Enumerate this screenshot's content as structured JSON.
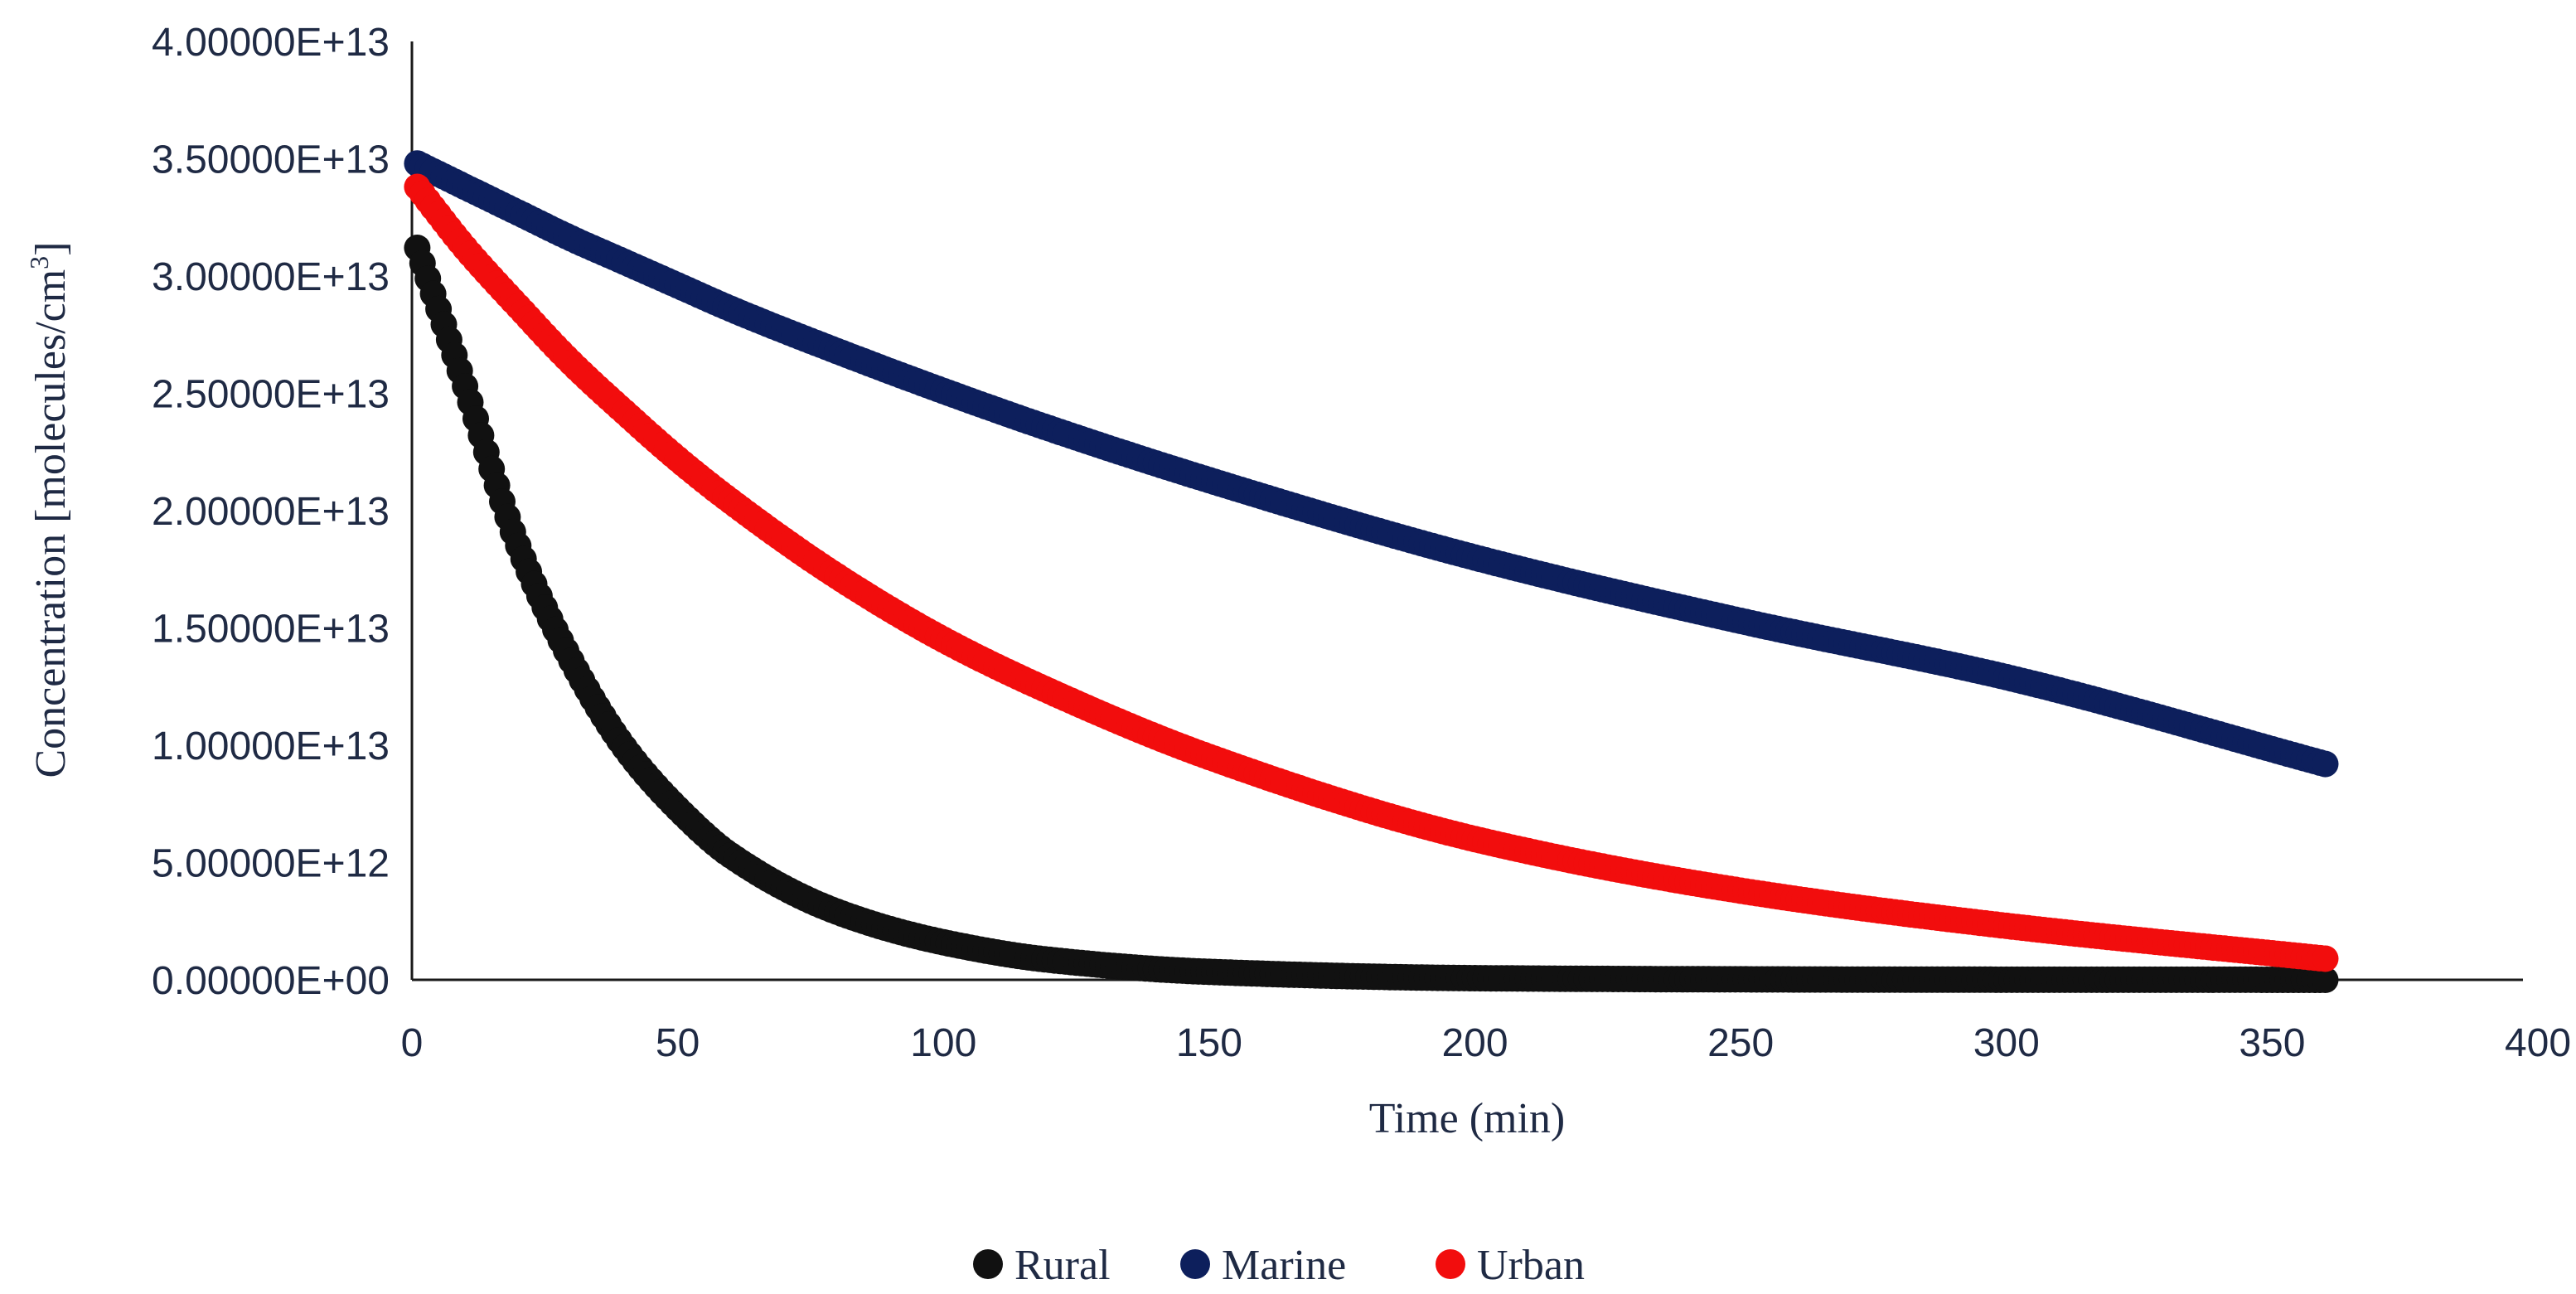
{
  "chart_data": {
    "type": "scatter",
    "title": "",
    "xlabel": "Time (min)",
    "ylabel": "Concentration [molecules/cm3]",
    "ylabel_main": "Concentration [molecules/cm",
    "ylabel_sup": "3",
    "ylabel_close": "]",
    "xlim": [
      0,
      400
    ],
    "ylim": [
      0,
      40000000000000.0
    ],
    "x_ticks": [
      0,
      50,
      100,
      150,
      200,
      250,
      300,
      350,
      400
    ],
    "x_tick_labels": [
      "0",
      "50",
      "100",
      "150",
      "200",
      "250",
      "300",
      "350",
      "400"
    ],
    "y_ticks": [
      0,
      5000000000000.0,
      10000000000000.0,
      15000000000000.0,
      20000000000000.0,
      25000000000000.0,
      30000000000000.0,
      35000000000000.0,
      40000000000000.0
    ],
    "y_tick_labels": [
      "0.00000E+00",
      "5.00000E+12",
      "1.00000E+13",
      "1.50000E+13",
      "2.00000E+13",
      "2.50000E+13",
      "3.00000E+13",
      "3.50000E+13",
      "4.00000E+13"
    ],
    "grid": false,
    "legend_position": "bottom",
    "x": [
      1,
      10,
      20,
      30,
      40,
      50,
      60,
      80,
      100,
      120,
      150,
      200,
      250,
      300,
      360
    ],
    "series": [
      {
        "name": "Rural",
        "color": "#111111",
        "y": [
          31200000000000.0,
          25300000000000.0,
          18500000000000.0,
          13600000000000.0,
          9900000000000.0,
          7300000000000.0,
          5300000000000.0,
          2900000000000.0,
          1600000000000.0,
          850000000000.0,
          340000000000.0,
          70000000000.0,
          20000000000.0,
          5000000000.0,
          1000000000.0
        ]
      },
      {
        "name": "Marine",
        "color": "#0d1f5c",
        "y": [
          34800000000000.0,
          33800000000000.0,
          32700000000000.0,
          31600000000000.0,
          30600000000000.0,
          29600000000000.0,
          28600000000000.0,
          26800000000000.0,
          25100000000000.0,
          23500000000000.0,
          21300000000000.0,
          18000000000000.0,
          15300000000000.0,
          12900000000000.0,
          9200000000000.0
        ]
      },
      {
        "name": "Urban",
        "color": "#f20d0d",
        "y": [
          33800000000000.0,
          31200000000000.0,
          28700000000000.0,
          26300000000000.0,
          24200000000000.0,
          22200000000000.0,
          20400000000000.0,
          17200000000000.0,
          14500000000000.0,
          12300000000000.0,
          9500000000000.0,
          6000000000000.0,
          3800000000000.0,
          2300000000000.0,
          900000000000.0
        ]
      }
    ]
  }
}
